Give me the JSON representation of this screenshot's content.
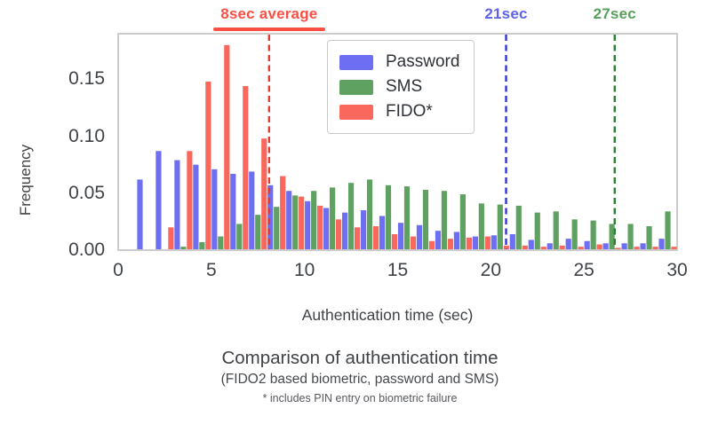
{
  "figure": {
    "background": "#ffffff",
    "tick_color": "#3f4347",
    "spine_color": "#cccccc"
  },
  "chart_data": {
    "type": "bar",
    "title": "Comparison of authentication time",
    "subtitle": "(FIDO2 based biometric, password and SMS)",
    "footnote": "* includes PIN entry on biometric failure",
    "xlabel": "Authentication time (sec)",
    "ylabel": "Frequency",
    "xlim": [
      0,
      30
    ],
    "ylim": [
      0,
      0.19
    ],
    "grid": false,
    "legend_position": "upper-center-inside",
    "xticks": [
      "0",
      "5",
      "10",
      "15",
      "20",
      "25",
      "30"
    ],
    "xtick_values": [
      0,
      5,
      10,
      15,
      20,
      25,
      30
    ],
    "yticks": [
      "0.00",
      "0.05",
      "0.10",
      "0.15"
    ],
    "ytick_values": [
      0.0,
      0.05,
      0.1,
      0.15
    ],
    "bin_start": 1,
    "bin_width": 1,
    "series": [
      {
        "name": "Password",
        "color": "#6e6ef2",
        "values": [
          0.062,
          0.087,
          0.079,
          0.075,
          0.071,
          0.067,
          0.069,
          0.057,
          0.052,
          0.043,
          0.037,
          0.033,
          0.035,
          0.03,
          0.024,
          0.022,
          0.017,
          0.016,
          0.012,
          0.013,
          0.014,
          0.009,
          0.006,
          0.01,
          0.008,
          0.006,
          0.006,
          0.006,
          0.01
        ]
      },
      {
        "name": "SMS",
        "color": "#5fa161",
        "values": [
          0,
          0,
          0.003,
          0.007,
          0.012,
          0.023,
          0.031,
          0.038,
          0.048,
          0.052,
          0.055,
          0.059,
          0.062,
          0.057,
          0.056,
          0.053,
          0.052,
          0.049,
          0.041,
          0.04,
          0.039,
          0.033,
          0.034,
          0.027,
          0.026,
          0.023,
          0.023,
          0.021,
          0.034
        ]
      },
      {
        "name": "FIDO*",
        "color": "#f9675d",
        "values": [
          0,
          0.02,
          0.087,
          0.148,
          0.18,
          0.144,
          0.098,
          0.065,
          0.047,
          0.039,
          0.027,
          0.02,
          0.021,
          0.014,
          0.012,
          0.008,
          0.01,
          0.011,
          0.012,
          0.004,
          0.004,
          0.003,
          0.004,
          0.003,
          0.005,
          0.002,
          0.003,
          0.003,
          0.003
        ]
      }
    ],
    "vlines": [
      {
        "label": "8sec average",
        "x": 8.1,
        "line_color": "#e8392e",
        "label_color": "#fa4f45",
        "underline": true
      },
      {
        "label": "21sec",
        "x": 20.82,
        "line_color": "#3134d8",
        "label_color": "#5f62e8",
        "underline": false
      },
      {
        "label": "27sec",
        "x": 26.65,
        "line_color": "#2c7d32",
        "label_color": "#56a05a",
        "underline": false
      }
    ]
  }
}
